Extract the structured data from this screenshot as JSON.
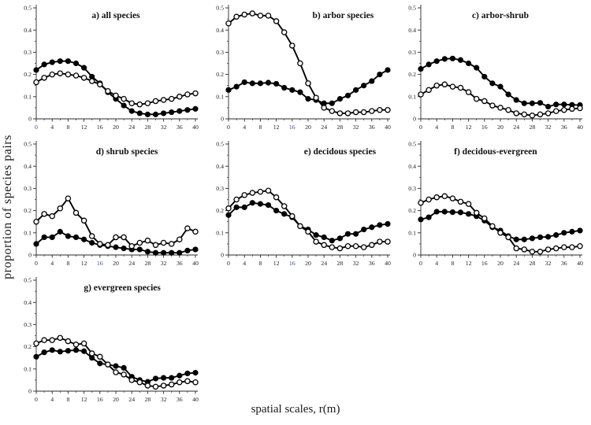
{
  "figure": {
    "ylabel": "proportion of species pairs",
    "xlabel": "spatial scales, r(m)",
    "background_color": "#ffffff",
    "axis_color": "#2a2a2a",
    "line_color": "#000000",
    "blue_tick_color": "#31479b"
  },
  "chart_data": [
    {
      "id": "a",
      "type": "line",
      "title": "a) all species",
      "title_x": 0.5,
      "xlim": [
        0,
        40
      ],
      "ylim": [
        0,
        0.5
      ],
      "xticks": [
        0,
        4,
        8,
        12,
        16,
        20,
        24,
        28,
        32,
        36,
        40
      ],
      "ytick_labels": [
        "0",
        "0.1",
        "0.2",
        "0.3",
        "0.4",
        "0.5"
      ],
      "yticks": [
        0,
        0.1,
        0.2,
        0.3,
        0.4,
        0.5
      ],
      "blue_xticks": [
        0
      ],
      "x": [
        0,
        2,
        4,
        6,
        8,
        10,
        12,
        14,
        16,
        18,
        20,
        22,
        24,
        26,
        28,
        30,
        32,
        34,
        36,
        38,
        40
      ],
      "series": [
        {
          "name": "filled-circles",
          "marker": "filled-circle",
          "values": [
            0.22,
            0.245,
            0.255,
            0.26,
            0.26,
            0.25,
            0.23,
            0.19,
            0.16,
            0.12,
            0.09,
            0.06,
            0.035,
            0.025,
            0.02,
            0.02,
            0.025,
            0.03,
            0.035,
            0.04,
            0.045
          ]
        },
        {
          "name": "open-circles",
          "marker": "open-circle",
          "values": [
            0.165,
            0.185,
            0.2,
            0.205,
            0.2,
            0.195,
            0.185,
            0.17,
            0.155,
            0.125,
            0.105,
            0.09,
            0.07,
            0.065,
            0.07,
            0.08,
            0.085,
            0.09,
            0.1,
            0.11,
            0.115
          ]
        }
      ]
    },
    {
      "id": "b",
      "type": "line",
      "title": "b) arbor species",
      "title_x": 0.72,
      "xlim": [
        0,
        40
      ],
      "ylim": [
        0,
        0.5
      ],
      "xticks": [
        0,
        4,
        8,
        12,
        16,
        20,
        24,
        28,
        32,
        36,
        40
      ],
      "ytick_labels": [
        "0",
        "0.1",
        "0.2",
        "0.3",
        "0.4",
        "0.5"
      ],
      "yticks": [
        0,
        0.1,
        0.2,
        0.3,
        0.4,
        0.5
      ],
      "blue_xticks": [
        16
      ],
      "x": [
        0,
        2,
        4,
        6,
        8,
        10,
        12,
        14,
        16,
        18,
        20,
        22,
        24,
        26,
        28,
        30,
        32,
        34,
        36,
        38,
        40
      ],
      "series": [
        {
          "name": "filled-circles",
          "marker": "filled-circle",
          "values": [
            0.13,
            0.145,
            0.165,
            0.16,
            0.16,
            0.163,
            0.158,
            0.14,
            0.13,
            0.12,
            0.09,
            0.085,
            0.07,
            0.07,
            0.09,
            0.105,
            0.13,
            0.15,
            0.17,
            0.2,
            0.22
          ]
        },
        {
          "name": "open-circles",
          "marker": "open-circle",
          "values": [
            0.43,
            0.46,
            0.47,
            0.475,
            0.465,
            0.465,
            0.44,
            0.39,
            0.33,
            0.25,
            0.16,
            0.095,
            0.05,
            0.035,
            0.025,
            0.025,
            0.03,
            0.03,
            0.035,
            0.04,
            0.04
          ]
        }
      ]
    },
    {
      "id": "c",
      "type": "line",
      "title": "c) arbor-shrub",
      "title_x": 0.5,
      "xlim": [
        0,
        40
      ],
      "ylim": [
        0,
        0.5
      ],
      "xticks": [
        0,
        4,
        8,
        12,
        16,
        20,
        24,
        28,
        32,
        36,
        40
      ],
      "ytick_labels": [
        "0",
        "0.1",
        "0.2",
        "0.3",
        "0.4",
        "0.5"
      ],
      "yticks": [
        0,
        0.1,
        0.2,
        0.3,
        0.4,
        0.5
      ],
      "blue_xticks": [],
      "x": [
        0,
        2,
        4,
        6,
        8,
        10,
        12,
        14,
        16,
        18,
        20,
        22,
        24,
        26,
        28,
        30,
        32,
        34,
        36,
        38,
        40
      ],
      "series": [
        {
          "name": "filled-circles",
          "marker": "filled-circle",
          "values": [
            0.225,
            0.245,
            0.26,
            0.27,
            0.272,
            0.265,
            0.25,
            0.23,
            0.19,
            0.16,
            0.145,
            0.11,
            0.085,
            0.07,
            0.07,
            0.072,
            0.055,
            0.065,
            0.065,
            0.063,
            0.062
          ]
        },
        {
          "name": "open-circles",
          "marker": "open-circle",
          "values": [
            0.11,
            0.13,
            0.15,
            0.155,
            0.145,
            0.14,
            0.12,
            0.09,
            0.08,
            0.06,
            0.05,
            0.04,
            0.025,
            0.02,
            0.015,
            0.02,
            0.025,
            0.035,
            0.04,
            0.045,
            0.048
          ]
        }
      ]
    },
    {
      "id": "d",
      "type": "line",
      "title": "d) shrub species",
      "title_x": 0.57,
      "xlim": [
        0,
        40
      ],
      "ylim": [
        0,
        0.5
      ],
      "xticks": [
        0,
        4,
        8,
        12,
        16,
        20,
        24,
        28,
        32,
        36,
        40
      ],
      "ytick_labels": [
        "0",
        "0.1",
        "0.2",
        "0.3",
        "0.4",
        "0.5"
      ],
      "yticks": [
        0,
        0.1,
        0.2,
        0.3,
        0.4,
        0.5
      ],
      "blue_xticks": [
        16
      ],
      "x": [
        0,
        2,
        4,
        6,
        8,
        10,
        12,
        14,
        16,
        18,
        20,
        22,
        24,
        26,
        28,
        30,
        32,
        34,
        36,
        38,
        40
      ],
      "series": [
        {
          "name": "filled-circles",
          "marker": "filled-circle",
          "values": [
            0.05,
            0.08,
            0.08,
            0.105,
            0.085,
            0.08,
            0.07,
            0.055,
            0.045,
            0.04,
            0.035,
            0.03,
            0.025,
            0.025,
            0.015,
            0.01,
            0.01,
            0.01,
            0.01,
            0.02,
            0.025
          ]
        },
        {
          "name": "open-circles",
          "marker": "open-circle",
          "values": [
            0.15,
            0.185,
            0.175,
            0.21,
            0.255,
            0.19,
            0.155,
            0.085,
            0.05,
            0.045,
            0.08,
            0.08,
            0.04,
            0.055,
            0.065,
            0.045,
            0.055,
            0.05,
            0.07,
            0.12,
            0.105
          ]
        }
      ]
    },
    {
      "id": "e",
      "type": "line",
      "title": "e) decidous species",
      "title_x": 0.7,
      "xlim": [
        0,
        40
      ],
      "ylim": [
        0,
        0.5
      ],
      "xticks": [
        0,
        4,
        8,
        12,
        16,
        20,
        24,
        28,
        32,
        36,
        40
      ],
      "ytick_labels": [
        "0",
        "0.1",
        "0.2",
        "0.3",
        "0.4",
        "0.5"
      ],
      "yticks": [
        0,
        0.1,
        0.2,
        0.3,
        0.4,
        0.5
      ],
      "blue_xticks": [
        16
      ],
      "x": [
        0,
        2,
        4,
        6,
        8,
        10,
        12,
        14,
        16,
        18,
        20,
        22,
        24,
        26,
        28,
        30,
        32,
        34,
        36,
        38,
        40
      ],
      "series": [
        {
          "name": "filled-circles",
          "marker": "filled-circle",
          "values": [
            0.18,
            0.215,
            0.215,
            0.235,
            0.23,
            0.225,
            0.2,
            0.185,
            0.17,
            0.13,
            0.115,
            0.09,
            0.08,
            0.065,
            0.075,
            0.095,
            0.095,
            0.115,
            0.125,
            0.135,
            0.14
          ]
        },
        {
          "name": "open-circles",
          "marker": "open-circle",
          "values": [
            0.21,
            0.25,
            0.27,
            0.28,
            0.285,
            0.29,
            0.26,
            0.22,
            0.175,
            0.13,
            0.105,
            0.06,
            0.045,
            0.035,
            0.03,
            0.04,
            0.04,
            0.035,
            0.045,
            0.06,
            0.06
          ]
        }
      ]
    },
    {
      "id": "f",
      "type": "line",
      "title": "f) decidous-evergreen",
      "title_x": 0.47,
      "xlim": [
        0,
        40
      ],
      "ylim": [
        0,
        0.5
      ],
      "xticks": [
        0,
        4,
        8,
        12,
        16,
        20,
        24,
        28,
        32,
        36,
        40
      ],
      "ytick_labels": [
        "0",
        "0.1",
        "0.2",
        "0.3",
        "0.4",
        "0.5"
      ],
      "yticks": [
        0,
        0.1,
        0.2,
        0.3,
        0.4,
        0.5
      ],
      "blue_xticks": [],
      "x": [
        0,
        2,
        4,
        6,
        8,
        10,
        12,
        14,
        16,
        18,
        20,
        22,
        24,
        26,
        28,
        30,
        32,
        34,
        36,
        38,
        40
      ],
      "series": [
        {
          "name": "filled-circles",
          "marker": "filled-circle",
          "values": [
            0.16,
            0.17,
            0.195,
            0.195,
            0.193,
            0.192,
            0.185,
            0.175,
            0.155,
            0.125,
            0.11,
            0.085,
            0.07,
            0.07,
            0.075,
            0.08,
            0.082,
            0.09,
            0.1,
            0.105,
            0.11
          ]
        },
        {
          "name": "open-circles",
          "marker": "open-circle",
          "values": [
            0.235,
            0.25,
            0.26,
            0.265,
            0.255,
            0.24,
            0.23,
            0.19,
            0.165,
            0.13,
            0.1,
            0.08,
            0.03,
            0.025,
            0.015,
            0.015,
            0.025,
            0.03,
            0.035,
            0.035,
            0.04
          ]
        }
      ]
    },
    {
      "id": "g",
      "type": "line",
      "title": "g) evergreen species",
      "title_x": 0.54,
      "xlim": [
        0,
        40
      ],
      "ylim": [
        0,
        0.5
      ],
      "xticks": [
        0,
        4,
        8,
        12,
        16,
        20,
        24,
        28,
        32,
        36,
        40
      ],
      "ytick_labels": [
        "0",
        "0.1",
        "0.2",
        "0.3",
        "0.4",
        "0.5"
      ],
      "yticks": [
        0,
        0.1,
        0.2,
        0.3,
        0.4,
        0.5
      ],
      "blue_xticks": [],
      "x": [
        0,
        2,
        4,
        6,
        8,
        10,
        12,
        14,
        16,
        18,
        20,
        22,
        24,
        26,
        28,
        30,
        32,
        34,
        36,
        38,
        40
      ],
      "series": [
        {
          "name": "filled-circles",
          "marker": "filled-circle",
          "values": [
            0.155,
            0.175,
            0.185,
            0.178,
            0.182,
            0.185,
            0.18,
            0.15,
            0.125,
            0.12,
            0.113,
            0.105,
            0.065,
            0.05,
            0.042,
            0.057,
            0.06,
            0.06,
            0.07,
            0.08,
            0.083
          ]
        },
        {
          "name": "open-circles",
          "marker": "open-circle",
          "values": [
            0.215,
            0.23,
            0.23,
            0.24,
            0.225,
            0.21,
            0.215,
            0.17,
            0.155,
            0.12,
            0.085,
            0.075,
            0.05,
            0.04,
            0.025,
            0.02,
            0.025,
            0.03,
            0.04,
            0.045,
            0.04
          ]
        }
      ]
    }
  ]
}
